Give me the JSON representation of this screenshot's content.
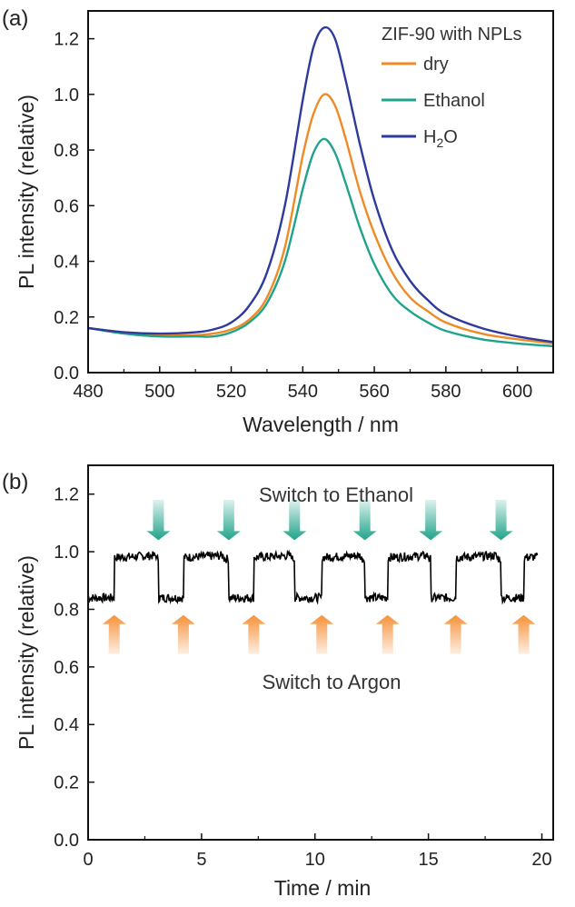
{
  "chart_data": [
    {
      "type": "line",
      "panel_label": "(a)",
      "xlabel": "Wavelength / nm",
      "ylabel": "PL intensity (relative)",
      "xlim": [
        480,
        610
      ],
      "ylim": [
        0.0,
        1.3
      ],
      "x_ticks": [
        "480",
        "500",
        "520",
        "540",
        "560",
        "580",
        "600"
      ],
      "y_ticks": [
        "0.0",
        "0.2",
        "0.4",
        "0.6",
        "0.8",
        "1.0",
        "1.2"
      ],
      "legend_title": "ZIF-90 with NPLs",
      "legend_position": "top-right",
      "series": [
        {
          "name": "dry",
          "color": "#f08a24",
          "x": [
            480,
            490,
            500,
            510,
            515,
            520,
            525,
            530,
            535,
            540,
            543,
            546,
            549,
            552,
            556,
            560,
            565,
            570,
            575,
            580,
            590,
            600,
            610
          ],
          "y": [
            0.16,
            0.145,
            0.135,
            0.135,
            0.14,
            0.155,
            0.19,
            0.27,
            0.45,
            0.78,
            0.93,
            1.0,
            0.96,
            0.84,
            0.65,
            0.5,
            0.36,
            0.27,
            0.22,
            0.18,
            0.14,
            0.12,
            0.105
          ]
        },
        {
          "name": "Ethanol",
          "color": "#1fa38a",
          "x": [
            480,
            490,
            500,
            510,
            515,
            520,
            525,
            530,
            535,
            540,
            543,
            546,
            549,
            552,
            556,
            560,
            565,
            570,
            575,
            580,
            590,
            600,
            610
          ],
          "y": [
            0.16,
            0.14,
            0.13,
            0.13,
            0.13,
            0.145,
            0.18,
            0.25,
            0.4,
            0.66,
            0.79,
            0.84,
            0.79,
            0.68,
            0.52,
            0.39,
            0.28,
            0.22,
            0.18,
            0.15,
            0.12,
            0.105,
            0.095
          ]
        },
        {
          "name": "H2O",
          "color": "#2e3a9c",
          "x": [
            480,
            490,
            500,
            510,
            515,
            520,
            525,
            530,
            535,
            540,
            543,
            546,
            549,
            552,
            556,
            560,
            565,
            570,
            575,
            580,
            590,
            600,
            610
          ],
          "y": [
            0.16,
            0.145,
            0.14,
            0.145,
            0.155,
            0.18,
            0.24,
            0.36,
            0.6,
            0.98,
            1.17,
            1.24,
            1.2,
            1.05,
            0.82,
            0.62,
            0.44,
            0.33,
            0.26,
            0.21,
            0.16,
            0.13,
            0.11
          ]
        }
      ]
    },
    {
      "type": "line",
      "panel_label": "(b)",
      "xlabel": "Time / min",
      "ylabel": "PL intensity (relative)",
      "xlim": [
        0,
        20.5
      ],
      "ylim": [
        0.0,
        1.3
      ],
      "x_ticks": [
        "0",
        "5",
        "10",
        "15",
        "20"
      ],
      "y_ticks": [
        "0.0",
        "0.2",
        "0.4",
        "0.6",
        "0.8",
        "1.0",
        "1.2"
      ],
      "low_level": 0.84,
      "high_level": 0.99,
      "switch_to_argon_times": [
        1.15,
        4.2,
        7.3,
        10.3,
        13.2,
        16.2,
        19.2
      ],
      "switch_to_ethanol_times": [
        3.1,
        6.2,
        9.1,
        12.2,
        15.1,
        18.2
      ],
      "trace_end": 19.8,
      "series": [
        {
          "name": "",
          "color": "#000000"
        }
      ],
      "annotations": {
        "top_text": "Switch to Ethanol",
        "bottom_text": "Switch to Argon",
        "ethanol_arrow_color": "#1fa38a",
        "argon_arrow_color": "#f5923a"
      }
    }
  ]
}
